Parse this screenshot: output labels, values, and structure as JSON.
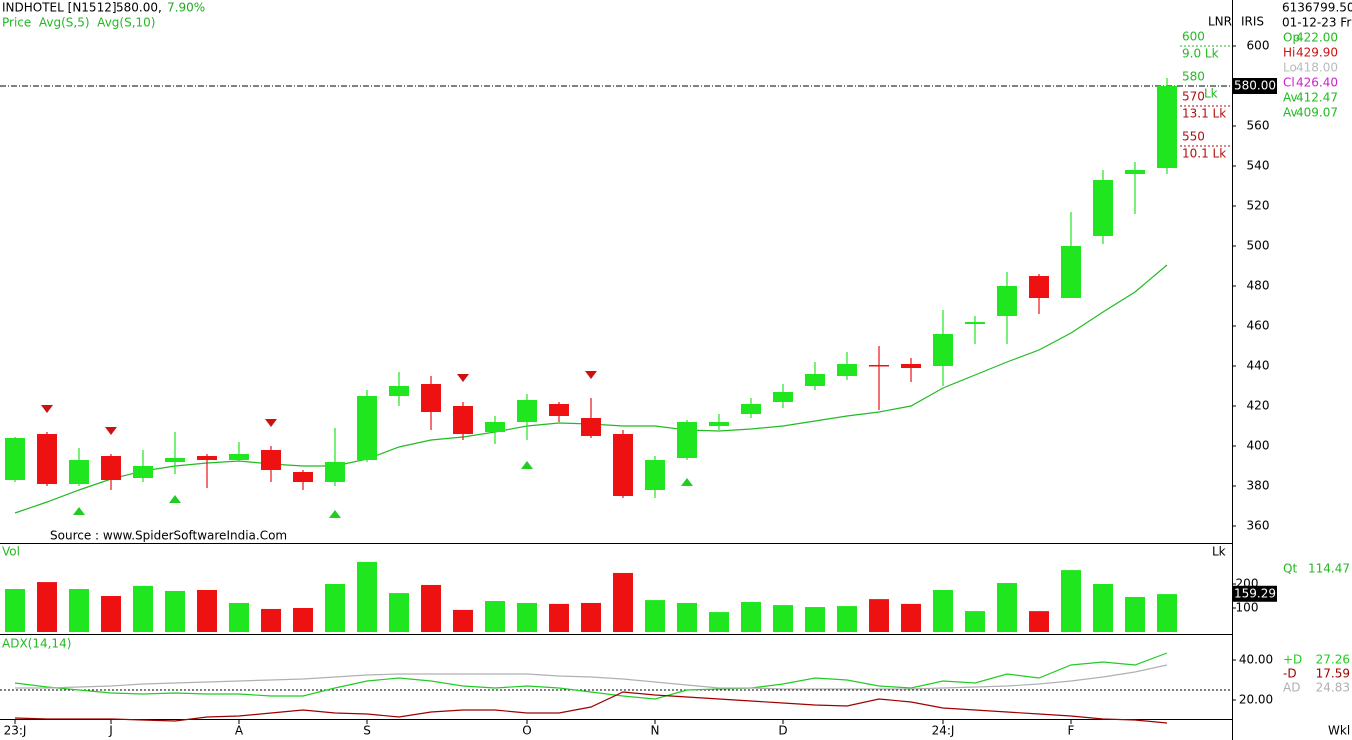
{
  "chart_data": {
    "type": "candlestick",
    "symbol": "INDHOTEL [N1512]",
    "header_price": "580.00,",
    "change": "7.90%",
    "indicators": "Price  Avg(S,5)  Avg(S,10)",
    "source": "Source : www.SpiderSoftwareIndia.Com",
    "categories": [
      "23:J",
      null,
      null,
      "J",
      null,
      null,
      null,
      "A",
      null,
      null,
      null,
      "S",
      null,
      null,
      null,
      null,
      "O",
      null,
      null,
      null,
      "N",
      null,
      null,
      null,
      "D",
      null,
      null,
      null,
      null,
      "24:J",
      null,
      null,
      null,
      "F",
      null,
      null,
      null
    ],
    "open": [
      383,
      406,
      381,
      395,
      384,
      392,
      395,
      393,
      398,
      387,
      382,
      393,
      425,
      431,
      420,
      407,
      412,
      421,
      414,
      406,
      378,
      394,
      410,
      416,
      422,
      430,
      435,
      440.5,
      441,
      440,
      461,
      465,
      485,
      474,
      505,
      536,
      539
    ],
    "high": [
      404.5,
      407,
      399,
      396,
      398,
      407,
      396,
      402,
      400,
      388,
      409,
      428,
      437,
      435,
      422,
      415,
      426,
      422,
      424,
      408,
      395,
      413,
      416,
      424,
      431,
      442,
      447,
      450,
      444,
      468,
      465,
      487,
      486,
      517,
      538,
      542,
      584
    ],
    "low": [
      382,
      380,
      380,
      378,
      382,
      386,
      379,
      392,
      382,
      378,
      380,
      392,
      420,
      408,
      403,
      401,
      403,
      412,
      404,
      374,
      374,
      393,
      408,
      414,
      419,
      428,
      433,
      418,
      432,
      430,
      451,
      451,
      466,
      474,
      501,
      516,
      536
    ],
    "close": [
      404,
      381,
      393,
      383,
      390,
      394,
      393,
      396,
      388,
      382,
      392,
      425,
      430,
      417,
      406,
      412,
      423,
      415,
      405,
      375,
      393,
      412,
      412,
      421,
      427,
      436,
      441,
      440,
      439,
      456,
      462,
      480,
      474,
      500,
      533,
      538,
      580
    ],
    "up_color": "#1fe61f",
    "down_color": "#ee1111",
    "moving_average": {
      "color": "#22bb22",
      "values": [
        366.5,
        372,
        378,
        383.5,
        387.5,
        390,
        391.5,
        392.5,
        391,
        390,
        390,
        393.5,
        399.5,
        403,
        404.5,
        407,
        410,
        411.5,
        411,
        410,
        410,
        408,
        407.5,
        408.5,
        410,
        412.5,
        415,
        417,
        420,
        429,
        435.5,
        442,
        448,
        456.5,
        467,
        477,
        490.5
      ]
    },
    "sell_signals": [
      null,
      418.5,
      null,
      407.5,
      null,
      null,
      null,
      null,
      411.5,
      null,
      null,
      null,
      null,
      null,
      434,
      null,
      null,
      null,
      435.5,
      null,
      null,
      null,
      null,
      null,
      null,
      null,
      null,
      null,
      null,
      null,
      null,
      null,
      null,
      null,
      null,
      null,
      null
    ],
    "buy_signals": [
      null,
      null,
      367.5,
      null,
      null,
      373.5,
      null,
      null,
      null,
      null,
      366,
      null,
      null,
      null,
      null,
      null,
      390.5,
      null,
      null,
      null,
      null,
      382,
      null,
      null,
      null,
      null,
      null,
      null,
      null,
      null,
      null,
      null,
      null,
      null,
      null,
      null,
      null
    ],
    "ylim": [
      350,
      620
    ],
    "yticks": [
      360,
      380,
      400,
      420,
      440,
      460,
      480,
      500,
      520,
      540,
      560,
      580,
      600
    ],
    "y_axis_labels": [
      "LNR",
      "IRIS"
    ],
    "levels": [
      {
        "price": 600,
        "volume": "9.0 Lk",
        "color": "#22bb22"
      },
      {
        "price": 580,
        "volume": "Lk",
        "color": "#22bb22"
      },
      {
        "price": 570,
        "volume": "13.1 Lk",
        "color": "#b01010"
      },
      {
        "price": 550,
        "volume": "10.1 Lk",
        "color": "#b01010"
      }
    ],
    "last_price": {
      "value": 580,
      "label": "580.00"
    },
    "info": [
      "6136799.50",
      "01-12-23 Fri"
    ],
    "readout": [
      {
        "name": "Op",
        "value": "422.00",
        "color": "#22bb22"
      },
      {
        "name": "Hi",
        "value": "429.90",
        "color": "#cc1111"
      },
      {
        "name": "Lo",
        "value": "418.00",
        "color": "#bbbbbb"
      },
      {
        "name": "Cl",
        "value": "426.40",
        "color": "#cc22cc"
      },
      {
        "name": "Av",
        "value": "412.47",
        "color": "#22bb22"
      },
      {
        "name": "Av",
        "value": "409.07",
        "color": "#22bb22"
      }
    ],
    "volume": {
      "title": "Vol",
      "unit": "Lk",
      "values": [
        179,
        208,
        179,
        150,
        192,
        171,
        175,
        121,
        96,
        100,
        200,
        292,
        162,
        196,
        92,
        129,
        121,
        117,
        121,
        246,
        133,
        121,
        83,
        125,
        112,
        104,
        108,
        137,
        117,
        175,
        87,
        204,
        87,
        258,
        200,
        146,
        158
      ],
      "ylim": [
        0,
        360
      ],
      "yticks": [
        100,
        200
      ],
      "readout": {
        "name": "Qt",
        "value": "114.47"
      },
      "last": {
        "value": 159.29,
        "label": "159.29"
      }
    },
    "adx": {
      "title": "ADX(14,14)",
      "ylim": [
        10,
        52
      ],
      "yticks": [
        {
          "value": 20,
          "label": "20.00"
        },
        {
          "value": 40,
          "label": "40.00"
        }
      ],
      "threshold": 25,
      "series": [
        {
          "name": "+D",
          "color": "#22cc22",
          "readout": "27.26",
          "values": [
            28.5,
            26.5,
            25,
            23.5,
            23,
            23.5,
            23,
            23,
            22,
            22,
            26,
            29.5,
            31,
            29.5,
            27,
            26,
            27,
            26,
            24,
            22,
            20.5,
            25,
            25.5,
            26,
            28,
            31,
            30,
            27,
            26,
            29.5,
            28.5,
            33,
            31,
            37.5,
            39,
            37.5,
            43.5
          ]
        },
        {
          "name": "-D",
          "color": "#a00000",
          "readout": "17.59",
          "values": [
            11,
            10.5,
            10.5,
            10.5,
            10,
            9.5,
            11.5,
            12,
            13.5,
            15,
            13.5,
            13,
            11.5,
            14,
            15,
            15,
            13.5,
            13.5,
            16.5,
            24,
            22.5,
            21.5,
            20.5,
            19.5,
            18.5,
            17.5,
            17,
            20.5,
            19,
            16,
            15,
            14,
            13,
            12,
            10.5,
            10,
            8.5
          ]
        },
        {
          "name": "AD",
          "color": "#b0b0b0",
          "readout": "24.83",
          "values": [
            26,
            26,
            26.5,
            27,
            28,
            28.5,
            29,
            29.5,
            30,
            30.5,
            31.5,
            32.5,
            33,
            33,
            33,
            33,
            33,
            32,
            31.5,
            30.5,
            29,
            27.5,
            26,
            26,
            25.5,
            25.5,
            25.5,
            25.5,
            25.5,
            26,
            26.5,
            27,
            28,
            29.5,
            31.5,
            34,
            37.5
          ]
        }
      ]
    },
    "period": "Wkl"
  }
}
